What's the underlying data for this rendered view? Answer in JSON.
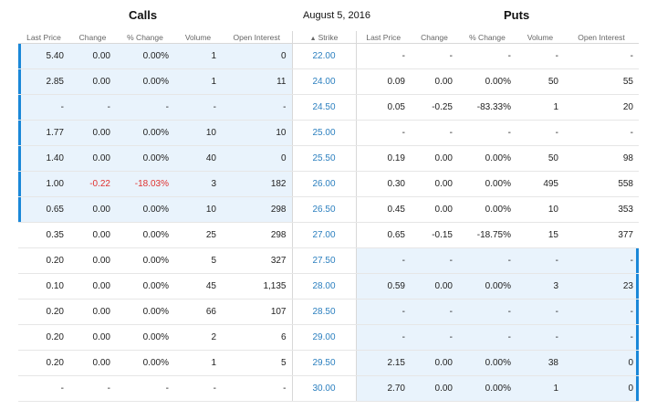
{
  "header": {
    "calls_title": "Calls",
    "date": "August 5, 2016",
    "puts_title": "Puts"
  },
  "columns": {
    "calls": [
      "Last Price",
      "Change",
      "% Change",
      "Volume",
      "Open Interest"
    ],
    "strike": "Strike",
    "puts": [
      "Last Price",
      "Change",
      "% Change",
      "Volume",
      "Open Interest"
    ]
  },
  "rows": [
    {
      "calls": [
        "5.40",
        "0.00",
        "0.00%",
        "1",
        "0"
      ],
      "strike": "22.00",
      "puts": [
        "-",
        "-",
        "-",
        "-",
        "-"
      ],
      "call_itm": true,
      "put_itm": false
    },
    {
      "calls": [
        "2.85",
        "0.00",
        "0.00%",
        "1",
        "11"
      ],
      "strike": "24.00",
      "puts": [
        "0.09",
        "0.00",
        "0.00%",
        "50",
        "55"
      ],
      "call_itm": true,
      "put_itm": false
    },
    {
      "calls": [
        "-",
        "-",
        "-",
        "-",
        "-"
      ],
      "strike": "24.50",
      "puts": [
        "0.05",
        "-0.25",
        "-83.33%",
        "1",
        "20"
      ],
      "call_itm": true,
      "put_itm": false
    },
    {
      "calls": [
        "1.77",
        "0.00",
        "0.00%",
        "10",
        "10"
      ],
      "strike": "25.00",
      "puts": [
        "-",
        "-",
        "-",
        "-",
        "-"
      ],
      "call_itm": true,
      "put_itm": false
    },
    {
      "calls": [
        "1.40",
        "0.00",
        "0.00%",
        "40",
        "0"
      ],
      "strike": "25.50",
      "puts": [
        "0.19",
        "0.00",
        "0.00%",
        "50",
        "98"
      ],
      "call_itm": true,
      "put_itm": false
    },
    {
      "calls": [
        "1.00",
        "-0.22",
        "-18.03%",
        "3",
        "182"
      ],
      "strike": "26.00",
      "puts": [
        "0.30",
        "0.00",
        "0.00%",
        "495",
        "558"
      ],
      "call_itm": true,
      "put_itm": false
    },
    {
      "calls": [
        "0.65",
        "0.00",
        "0.00%",
        "10",
        "298"
      ],
      "strike": "26.50",
      "puts": [
        "0.45",
        "0.00",
        "0.00%",
        "10",
        "353"
      ],
      "call_itm": true,
      "put_itm": false
    },
    {
      "calls": [
        "0.35",
        "0.00",
        "0.00%",
        "25",
        "298"
      ],
      "strike": "27.00",
      "puts": [
        "0.65",
        "-0.15",
        "-18.75%",
        "15",
        "377"
      ],
      "call_itm": false,
      "put_itm": false
    },
    {
      "calls": [
        "0.20",
        "0.00",
        "0.00%",
        "5",
        "327"
      ],
      "strike": "27.50",
      "puts": [
        "-",
        "-",
        "-",
        "-",
        "-"
      ],
      "call_itm": false,
      "put_itm": true
    },
    {
      "calls": [
        "0.10",
        "0.00",
        "0.00%",
        "45",
        "1,135"
      ],
      "strike": "28.00",
      "puts": [
        "0.59",
        "0.00",
        "0.00%",
        "3",
        "23"
      ],
      "call_itm": false,
      "put_itm": true
    },
    {
      "calls": [
        "0.20",
        "0.00",
        "0.00%",
        "66",
        "107"
      ],
      "strike": "28.50",
      "puts": [
        "-",
        "-",
        "-",
        "-",
        "-"
      ],
      "call_itm": false,
      "put_itm": true
    },
    {
      "calls": [
        "0.20",
        "0.00",
        "0.00%",
        "2",
        "6"
      ],
      "strike": "29.00",
      "puts": [
        "-",
        "-",
        "-",
        "-",
        "-"
      ],
      "call_itm": false,
      "put_itm": true
    },
    {
      "calls": [
        "0.20",
        "0.00",
        "0.00%",
        "1",
        "5"
      ],
      "strike": "29.50",
      "puts": [
        "2.15",
        "0.00",
        "0.00%",
        "38",
        "0"
      ],
      "call_itm": false,
      "put_itm": true
    },
    {
      "calls": [
        "-",
        "-",
        "-",
        "-",
        "-"
      ],
      "strike": "30.00",
      "puts": [
        "2.70",
        "0.00",
        "0.00%",
        "1",
        "0"
      ],
      "call_itm": false,
      "put_itm": true
    }
  ],
  "colors": {
    "itm_background": "#e9f3fc",
    "itm_bar": "#1a87d8",
    "strike_text": "#2b7fbf",
    "negative": "#e0312f"
  },
  "icons": {
    "strike_sort": "sort-ascending-icon"
  }
}
